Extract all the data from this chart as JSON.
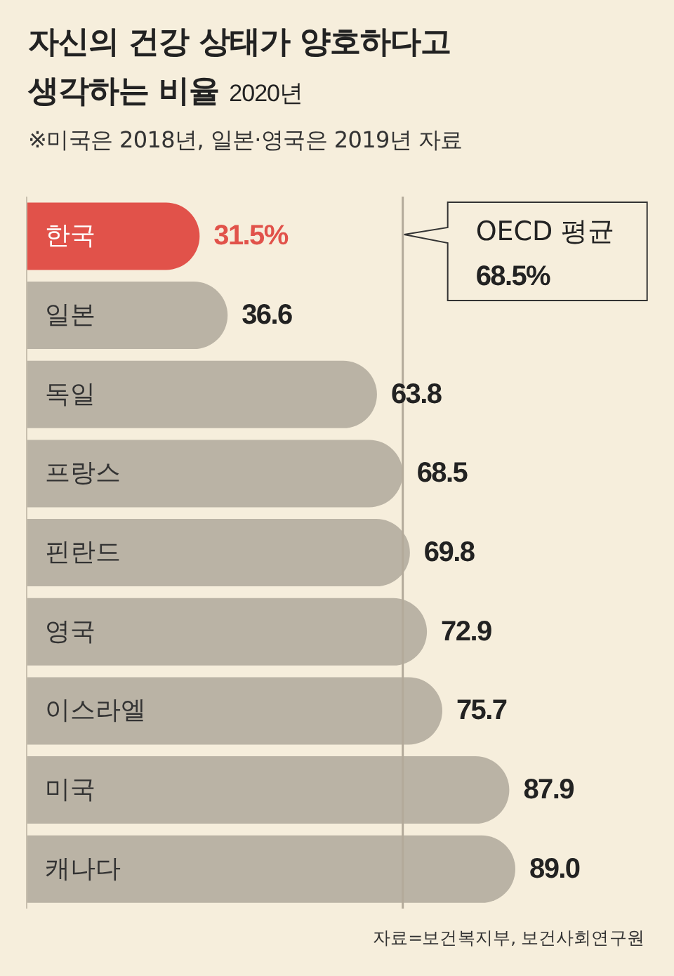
{
  "chart_data": {
    "type": "bar",
    "orientation": "horizontal",
    "title": "자신의 건강 상태가 양호하다고 생각하는 비율",
    "subtitle": "2020년",
    "categories": [
      "한국",
      "일본",
      "독일",
      "프랑스",
      "핀란드",
      "영국",
      "이스라엘",
      "미국",
      "캐나다"
    ],
    "values": [
      31.5,
      36.6,
      63.8,
      68.5,
      69.8,
      72.9,
      75.7,
      87.9,
      89.0
    ],
    "colors": [
      "#e1524a",
      "#bab3a5",
      "#bab3a5",
      "#bab3a5",
      "#bab3a5",
      "#bab3a5",
      "#bab3a5",
      "#bab3a5",
      "#bab3a5"
    ],
    "value_labels": [
      "31.5%",
      "36.6",
      "63.8",
      "68.5",
      "69.8",
      "72.9",
      "75.7",
      "87.9",
      "89.0"
    ],
    "ref_lines": [
      {
        "axis": "x",
        "value": 68.5,
        "label": "OECD 평균\n68.5%",
        "color": "#b3aa9a"
      }
    ],
    "annotations": [
      "※미국은 2018년, 일본·영국은 2019년 자료",
      "자료=보건복지부, 보건사회연구원"
    ]
  }
}
